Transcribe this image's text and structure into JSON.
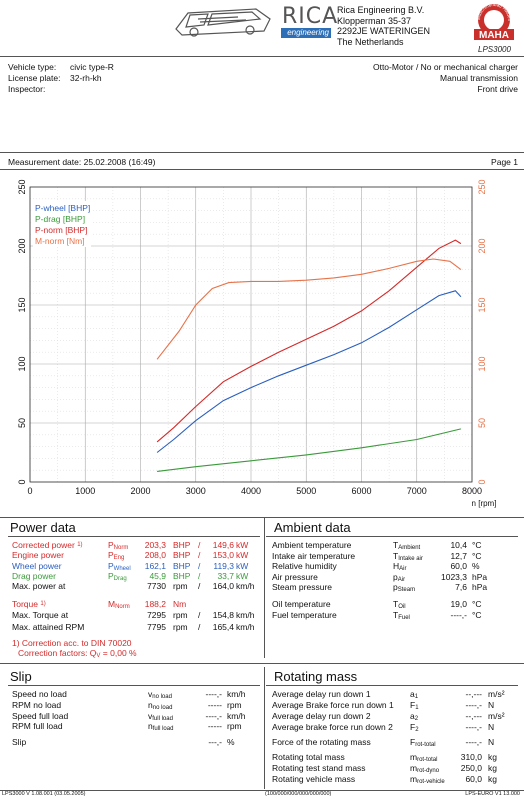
{
  "company": {
    "name": "Rica Engineering B.V.",
    "street": "Klopperman 35-37",
    "city": "2292JE WATERINGEN",
    "country": "The Netherlands",
    "brand": "RICA",
    "brand_sub": "engineering",
    "maha_brand": "MAHA",
    "maha_ring_text": "Maschinenbau Haldenwang",
    "product": "LPS3000"
  },
  "vehicle": {
    "type_label": "Vehicle type:",
    "type_value": "civic type-R",
    "plate_label": "License plate:",
    "plate_value": "32-rh-kh",
    "inspector_label": "Inspector:",
    "engine": "Otto-Motor / No or mechanical charger",
    "transmission": "Manual transmission",
    "drive": "Front drive"
  },
  "measurement": {
    "date_label": "Measurement date: 25.02.2008 (16:49)",
    "page": "Page 1"
  },
  "colors": {
    "red": "#d42a2a",
    "blue": "#2a5fbf",
    "green": "#3a9a3a",
    "orange": "#e8734a"
  },
  "chart_data": {
    "type": "line",
    "xlabel": "n [rpm]",
    "xlim": [
      0,
      8000
    ],
    "ylim": [
      0,
      250
    ],
    "y2lim": [
      0,
      250
    ],
    "x_ticks": [
      0,
      1000,
      2000,
      3000,
      4000,
      5000,
      6000,
      7000,
      8000
    ],
    "y_ticks": [
      0,
      50,
      100,
      150,
      200,
      250
    ],
    "grid": true,
    "legend_position": "top-left",
    "series": [
      {
        "name": "P-wheel [BHP]",
        "color": "#2a5fbf",
        "x": [
          2300,
          2600,
          3000,
          3500,
          4000,
          4500,
          5000,
          5500,
          6000,
          6500,
          7000,
          7400,
          7700,
          7800
        ],
        "y": [
          25,
          36,
          52,
          69,
          80,
          90,
          99,
          108,
          118,
          131,
          146,
          158,
          162,
          157
        ]
      },
      {
        "name": "P-drag [BHP]",
        "color": "#3a9a3a",
        "x": [
          2300,
          3000,
          4000,
          5000,
          6000,
          7000,
          7800
        ],
        "y": [
          9,
          13,
          18,
          23,
          29,
          36,
          45
        ]
      },
      {
        "name": "P-norm [BHP]",
        "color": "#d42a2a",
        "x": [
          2300,
          2600,
          3000,
          3500,
          4000,
          4500,
          5000,
          5500,
          6000,
          6500,
          7000,
          7400,
          7700,
          7800
        ],
        "y": [
          34,
          46,
          64,
          85,
          98,
          110,
          121,
          132,
          145,
          162,
          182,
          198,
          205,
          202
        ]
      },
      {
        "name": "M-norm [Nm]",
        "color": "#e8734a",
        "x": [
          2300,
          2700,
          3000,
          3300,
          3600,
          4000,
          4500,
          5000,
          5500,
          6000,
          6500,
          7000,
          7300,
          7600,
          7800
        ],
        "y": [
          104,
          128,
          150,
          164,
          169,
          170,
          170,
          171,
          173,
          176,
          181,
          187,
          189,
          187,
          180
        ]
      }
    ]
  },
  "power_data": {
    "title": "Power data",
    "rows": [
      {
        "label": "Corrected power",
        "mark": "1)",
        "sym": "P",
        "sub": "Norm",
        "v1": "203,3",
        "u1": "BHP",
        "v2": "149,6",
        "u2": "kW",
        "color": "red"
      },
      {
        "label": "Engine power",
        "mark": "",
        "sym": "P",
        "sub": "Eng",
        "v1": "208,0",
        "u1": "BHP",
        "v2": "153,0",
        "u2": "kW",
        "color": "red"
      },
      {
        "label": "Wheel power",
        "mark": "",
        "sym": "P",
        "sub": "Wheel",
        "v1": "162,1",
        "u1": "BHP",
        "v2": "119,3",
        "u2": "kW",
        "color": "blue"
      },
      {
        "label": "Drag power",
        "mark": "",
        "sym": "P",
        "sub": "Drag",
        "v1": "45,9",
        "u1": "BHP",
        "v2": "33,7",
        "u2": "kW",
        "color": "green"
      },
      {
        "label": "Max. power at",
        "mark": "",
        "sym": "",
        "sub": "",
        "v1": "7730",
        "u1": "rpm",
        "v2": "164,0",
        "u2": "km/h",
        "color": ""
      }
    ],
    "torque": {
      "label": "Torque",
      "mark": "1)",
      "sym": "M",
      "sub": "Norm",
      "v1": "188,2",
      "u1": "Nm"
    },
    "max_torque": {
      "label": "Max. Torque at",
      "v1": "7295",
      "u1": "rpm",
      "v2": "154,8",
      "u2": "km/h"
    },
    "max_rpm": {
      "label": "Max. attained RPM",
      "v1": "7795",
      "u1": "rpm",
      "v2": "165,4",
      "u2": "km/h"
    },
    "footnote1": "1) Correction acc. to DIN 70020",
    "footnote2": "Correction factors: Q",
    "footnote2b": " =    0,00 %"
  },
  "ambient": {
    "title": "Ambient data",
    "rows": [
      {
        "label": "Ambient temperature",
        "sym": "T",
        "sub": "Ambient",
        "val": "10,4",
        "unit": "°C"
      },
      {
        "label": "Intake air temperature",
        "sym": "T",
        "sub": "Intake air",
        "val": "12,7",
        "unit": "°C"
      },
      {
        "label": "Relative humidity",
        "sym": "H",
        "sub": "Air",
        "val": "60,0",
        "unit": "%"
      },
      {
        "label": "Air pressure",
        "sym": "p",
        "sub": "Air",
        "val": "1023,3",
        "unit": "hPa"
      },
      {
        "label": "Steam pressure",
        "sym": "p",
        "sub": "Steam",
        "val": "7,6",
        "unit": "hPa"
      },
      {
        "label": "Oil temperature",
        "sym": "T",
        "sub": "Oil",
        "val": "19,0",
        "unit": "°C"
      },
      {
        "label": "Fuel temperature",
        "sym": "T",
        "sub": "Fuel",
        "val": "----,-",
        "unit": "°C"
      }
    ]
  },
  "slip": {
    "title": "Slip",
    "rows": [
      {
        "label": "Speed no load",
        "sym": "v",
        "sub": "no load",
        "val": "----,-",
        "unit": "km/h"
      },
      {
        "label": "RPM no load",
        "sym": "n",
        "sub": "no load",
        "val": "-----",
        "unit": "rpm"
      },
      {
        "label": "Speed full load",
        "sym": "v",
        "sub": "full load",
        "val": "----,-",
        "unit": "km/h"
      },
      {
        "label": "RPM full load",
        "sym": "n",
        "sub": "full load",
        "val": "-----",
        "unit": "rpm"
      },
      {
        "label": "Slip",
        "sym": "",
        "sub": "",
        "val": "---,-",
        "unit": "%"
      }
    ]
  },
  "rotating": {
    "title": "Rotating mass",
    "rows": [
      {
        "label": "Average delay run down 1",
        "sym": "a",
        "sub": "1",
        "val": "--,---",
        "unit": "m/s²"
      },
      {
        "label": "Average Brake force run down 1",
        "sym": "F",
        "sub": "1",
        "val": "----,-",
        "unit": "N"
      },
      {
        "label": "Average delay run down 2",
        "sym": "a",
        "sub": "2",
        "val": "--,---",
        "unit": "m/s²"
      },
      {
        "label": "Average brake force run down 2",
        "sym": "F",
        "sub": "2",
        "val": "----,-",
        "unit": "N"
      },
      {
        "label": "Force of the rotating mass",
        "sym": "F",
        "sub": "rot-total",
        "val": "----,-",
        "unit": "N"
      },
      {
        "label": "Rotating total mass",
        "sym": "m",
        "sub": "rot-total",
        "val": "310,0",
        "unit": "kg"
      },
      {
        "label": "Rotating test stand mass",
        "sym": "m",
        "sub": "rot-dyno",
        "val": "250,0",
        "unit": "kg"
      },
      {
        "label": "Rotating vehicle mass",
        "sym": "m",
        "sub": "rot-vehicle",
        "val": "60,0",
        "unit": "kg"
      }
    ]
  },
  "footer": {
    "left": "LPS3000 V 1.08.001 (03.05.2005)",
    "mid": "(100/000/000/000/000/000)",
    "right": "LPS-EURO V1 13.000"
  }
}
